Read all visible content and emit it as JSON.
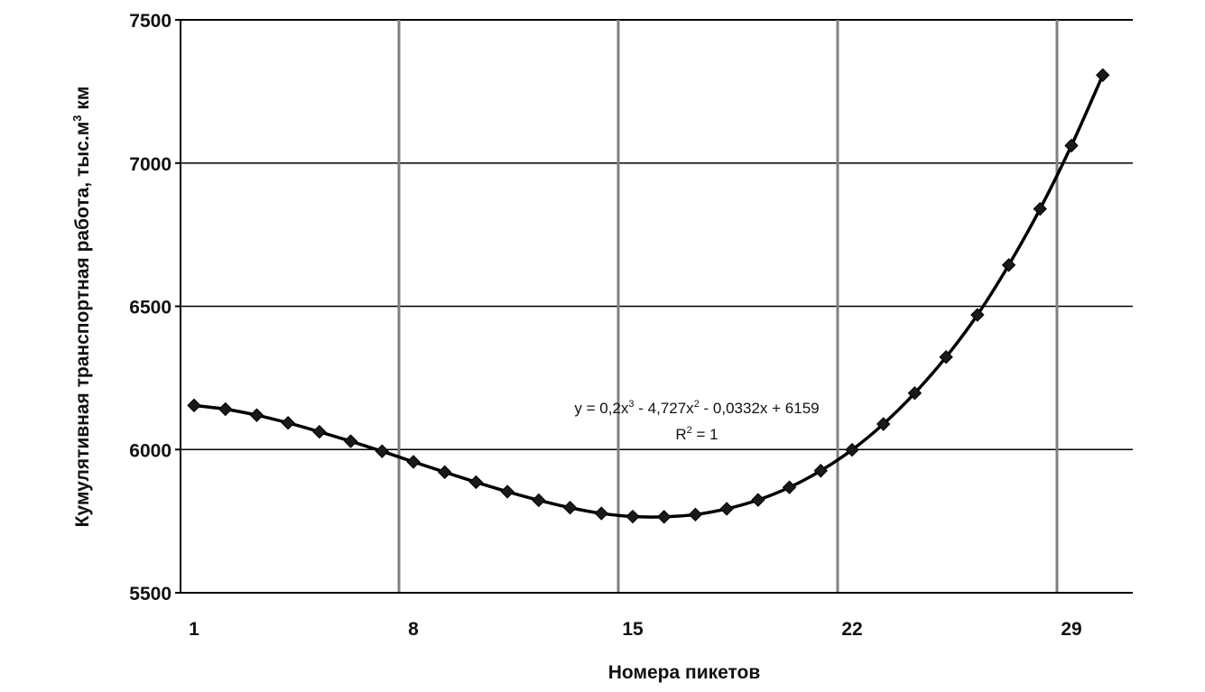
{
  "chart_data": {
    "type": "line",
    "xlabel": "Номера пикетов",
    "ylabel_main": "Кумулятивная транспортная работа, тыс.м",
    "ylabel_sup": "3",
    "ylabel_tail": " км",
    "ylim": [
      5500,
      7500
    ],
    "xlim": [
      1,
      30
    ],
    "x_ticks": [
      1,
      8,
      15,
      22,
      29
    ],
    "y_ticks": [
      5500,
      6000,
      6500,
      7000,
      7500
    ],
    "grid": "vertical lines at 8, 15, 22, 29; horizontal lines at 6000, 6500, 7000",
    "marker": "diamond",
    "trendline": {
      "equation": {
        "p1": "y = 0,2x",
        "s1": "3",
        "p2": " - 4,727x",
        "s2": "2",
        "p3": " - 0,0332x + 6159"
      },
      "r2": {
        "p1": "R",
        "s1": "2",
        "p2": " = 1"
      }
    },
    "colors": {
      "line": "#000000",
      "marker": "#1a1a1a",
      "grid": "#808080"
    },
    "series": [
      {
        "x": [
          1,
          2,
          3,
          4,
          5,
          6,
          7,
          8,
          9,
          10,
          11,
          12,
          13,
          14,
          15,
          16,
          17,
          18,
          19,
          20,
          21,
          22,
          23,
          24,
          25,
          26,
          27,
          28,
          29,
          30
        ],
        "values": [
          6154,
          6141,
          6120,
          6093,
          6062,
          6029,
          5994,
          5957,
          5921,
          5886,
          5853,
          5823,
          5797,
          5777,
          5766,
          5765,
          5773,
          5793,
          5824,
          5868,
          5926,
          5999,
          6089,
          6197,
          6323,
          6470,
          6644,
          6840,
          7061,
          7307
        ]
      }
    ]
  }
}
